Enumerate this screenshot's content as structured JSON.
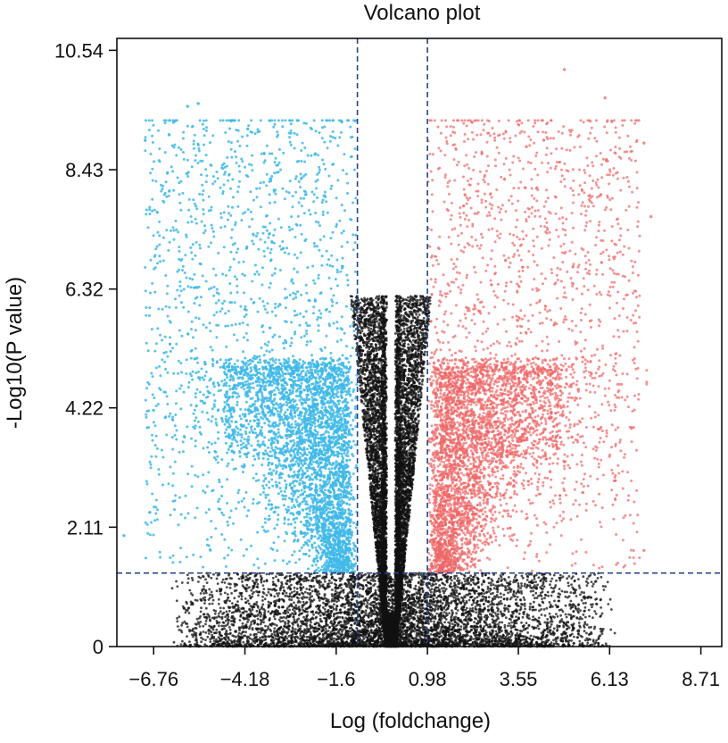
{
  "chart_data": {
    "type": "scatter",
    "title": "Volcano plot",
    "xlabel": "Log (foldchange)",
    "ylabel": "-Log10(P value)",
    "xlim": [
      -7.8,
      9.3
    ],
    "ylim": [
      0,
      10.54
    ],
    "x_ticks": [
      -6.76,
      -4.18,
      -1.6,
      0.98,
      3.55,
      6.13,
      8.71
    ],
    "x_tick_labels": [
      "−6.76",
      "−4.18",
      "−1.6",
      "0.98",
      "3.55",
      "6.13",
      "8.71"
    ],
    "y_ticks": [
      0,
      2.11,
      4.22,
      6.32,
      8.43,
      10.54
    ],
    "y_tick_labels": [
      "0",
      "2.11",
      "4.22",
      "6.32",
      "8.43",
      "10.54"
    ],
    "thresholds": {
      "x": [
        -1,
        0.98
      ],
      "y": 1.3
    },
    "colors": {
      "down": "#3fb8e8",
      "up": "#ee6666",
      "ns": "#111111",
      "threshold": "#24448c"
    },
    "series": [
      {
        "group": "down",
        "approx_count": 5200,
        "x_range": [
          -7.6,
          -1.0
        ],
        "y_range": [
          1.3,
          9.6
        ],
        "notable_points": [
          [
            -7.6,
            1.96
          ],
          [
            -5.8,
            9.55
          ],
          [
            -5.5,
            9.6
          ],
          [
            -7.0,
            8.95
          ],
          [
            -4.1,
            9.15
          ],
          [
            -2.2,
            8.7
          ]
        ]
      },
      {
        "group": "up",
        "approx_count": 5400,
        "x_range": [
          0.98,
          7.5
        ],
        "y_range": [
          1.3,
          10.2
        ],
        "notable_points": [
          [
            4.85,
            10.2
          ],
          [
            6.0,
            9.7
          ],
          [
            7.1,
            8.9
          ],
          [
            7.3,
            7.6
          ],
          [
            7.1,
            1.7
          ]
        ]
      },
      {
        "group": "ns",
        "approx_count": 14000,
        "x_range": [
          -6.6,
          6.3
        ],
        "y_range": [
          0,
          6.5
        ]
      }
    ]
  }
}
